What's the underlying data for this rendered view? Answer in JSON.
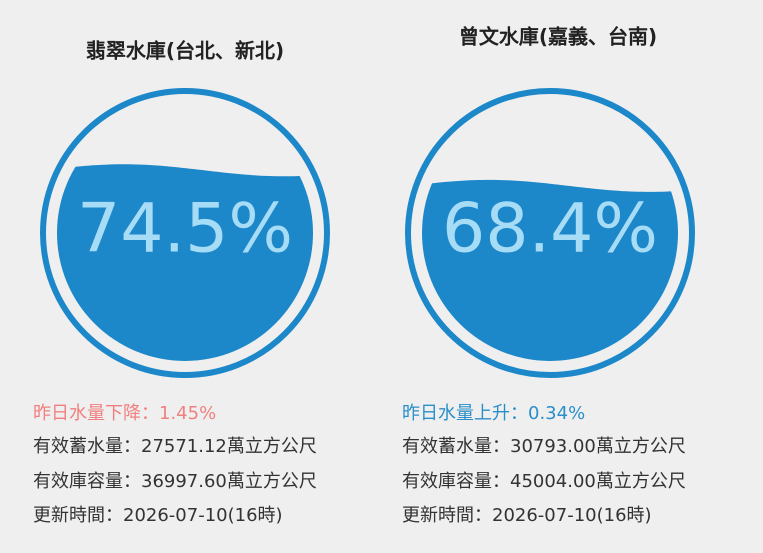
{
  "reservoirs": [
    {
      "name": "翡翠水庫(台北、新北)",
      "level": {
        "value": 74.5,
        "label": "74.5%"
      },
      "change": "昨日水量下降：1.45%",
      "change_color": "#f08080",
      "storage": "有效蓄水量：27571.12萬立方公尺",
      "capacity": "有效庫容量：36997.60萬立方公尺",
      "updated": "更新時間：2026-07-10(16時)"
    },
    {
      "name": "曾文水庫(嘉義、台南)",
      "level": {
        "value": 68.4,
        "label": "68.4%"
      },
      "change": "昨日水量上升：0.34%",
      "change_color": "#2a8fc9",
      "storage": "有效蓄水量：30793.00萬立方公尺",
      "capacity": "有效庫容量：45004.00萬立方公尺",
      "updated": "更新時間：2026-07-10(16時)"
    }
  ]
}
